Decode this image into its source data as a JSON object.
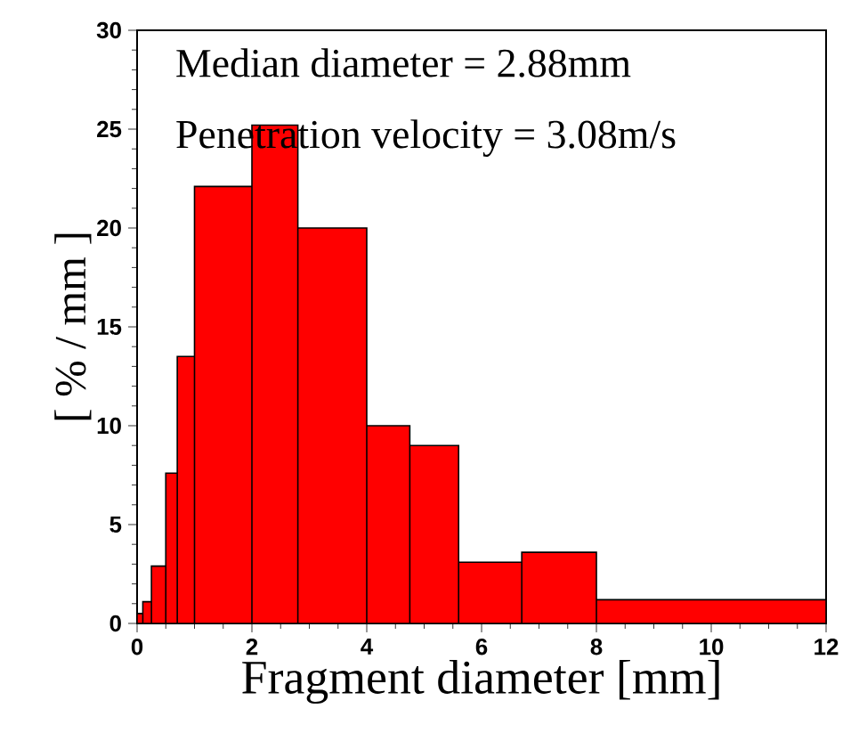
{
  "chart_data": {
    "type": "histogram",
    "xlabel": "Fragment diameter [mm]",
    "ylabel": "[ % / mm ]",
    "annotations": [
      "Median diameter = 2.88mm",
      "Penetration velocity = 3.08m/s"
    ],
    "bins": [
      0,
      0.1,
      0.25,
      0.5,
      0.7,
      1.0,
      2.0,
      2.8,
      4.0,
      4.75,
      5.6,
      6.7,
      8.0,
      12
    ],
    "values": [
      0.5,
      1.1,
      2.9,
      7.6,
      13.5,
      22.1,
      25.2,
      20.0,
      10.0,
      9.0,
      3.1,
      3.6,
      1.2
    ],
    "color": "#ff0000",
    "xlim": [
      0,
      12
    ],
    "ylim": [
      0,
      30
    ],
    "xticks": [
      0,
      2,
      4,
      6,
      8,
      10,
      12
    ],
    "yticks": [
      0,
      5,
      10,
      15,
      20,
      25,
      30
    ]
  }
}
